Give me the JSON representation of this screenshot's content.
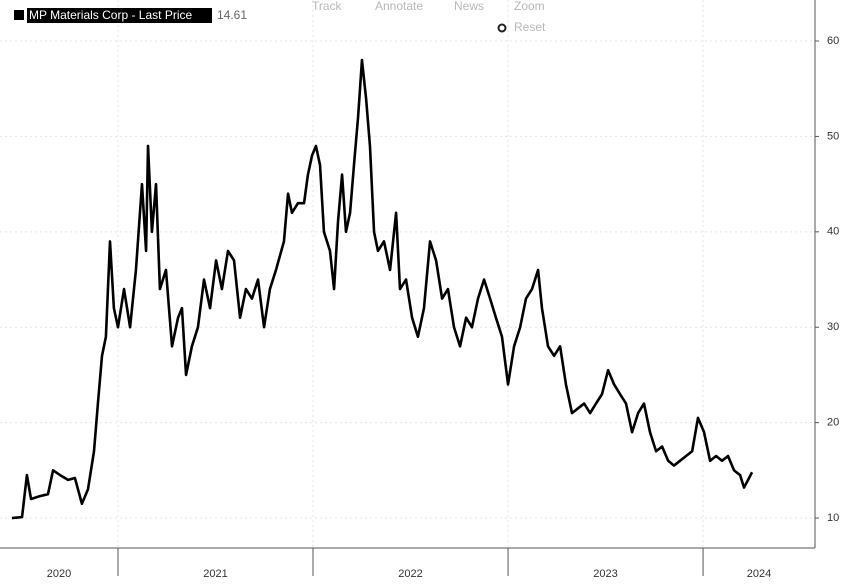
{
  "toolbar": [
    "Track",
    "Annotate",
    "News",
    "Zoom",
    "Reset"
  ],
  "chart_data": {
    "type": "line",
    "series": [
      {
        "name": "MP Materials Corp - Last Price",
        "color": "#000000",
        "last_price": 14.61,
        "x": [
          2020.456,
          2020.508,
          2020.533,
          2020.554,
          2020.6,
          2020.641,
          2020.667,
          2020.703,
          2020.744,
          2020.779,
          2020.815,
          2020.846,
          2020.877,
          2020.897,
          2020.918,
          2020.938,
          2020.959,
          2020.979,
          2021.0,
          2021.031,
          2021.062,
          2021.092,
          2021.123,
          2021.144,
          2021.154,
          2021.174,
          2021.195,
          2021.215,
          2021.246,
          2021.277,
          2021.308,
          2021.328,
          2021.349,
          2021.379,
          2021.41,
          2021.441,
          2021.472,
          2021.503,
          2021.533,
          2021.564,
          2021.595,
          2021.626,
          2021.656,
          2021.687,
          2021.718,
          2021.749,
          2021.779,
          2021.81,
          2021.851,
          2021.872,
          2021.892,
          2021.923,
          2021.954,
          2021.974,
          2021.995,
          2022.015,
          2022.036,
          2022.056,
          2022.087,
          2022.108,
          2022.128,
          2022.149,
          2022.169,
          2022.19,
          2022.21,
          2022.231,
          2022.251,
          2022.272,
          2022.292,
          2022.313,
          2022.333,
          2022.364,
          2022.395,
          2022.426,
          2022.446,
          2022.477,
          2022.508,
          2022.538,
          2022.569,
          2022.6,
          2022.631,
          2022.662,
          2022.692,
          2022.723,
          2022.754,
          2022.785,
          2022.815,
          2022.846,
          2022.877,
          2022.908,
          2022.938,
          2022.969,
          2023.0,
          2023.031,
          2023.062,
          2023.092,
          2023.123,
          2023.154,
          2023.174,
          2023.205,
          2023.236,
          2023.267,
          2023.297,
          2023.328,
          2023.359,
          2023.39,
          2023.421,
          2023.451,
          2023.482,
          2023.513,
          2023.544,
          2023.574,
          2023.605,
          2023.636,
          2023.667,
          2023.697,
          2023.728,
          2023.759,
          2023.79,
          2023.821,
          2023.851,
          2023.882,
          2023.913,
          2023.944,
          2023.974,
          2024.005,
          2024.036,
          2024.067,
          2024.097,
          2024.128,
          2024.159,
          2024.19,
          2024.21,
          2024.231,
          2024.251
        ],
        "values": [
          10.0,
          10.1,
          14.5,
          12.0,
          12.3,
          12.5,
          15,
          14.5,
          14.0,
          14.2,
          11.5,
          13,
          17,
          22,
          27,
          29,
          39,
          32,
          30,
          34,
          30,
          36,
          45,
          38,
          49,
          40,
          45,
          34,
          36,
          28,
          31,
          32,
          25,
          28,
          30,
          35,
          32,
          37,
          34,
          38,
          37,
          31,
          34,
          33,
          35,
          30,
          34,
          36,
          39,
          44,
          42,
          43,
          43,
          46,
          48,
          49,
          47,
          40,
          38,
          34,
          41,
          46,
          40,
          42,
          47,
          52,
          58,
          54,
          49,
          40,
          38,
          39,
          36,
          42,
          34,
          35,
          31,
          29,
          32,
          39,
          37,
          33,
          34,
          30,
          28,
          31,
          30,
          33,
          35,
          33,
          31,
          29,
          24,
          28,
          30,
          33,
          34,
          36,
          32,
          28,
          27,
          28,
          24,
          21,
          21.5,
          22,
          21,
          22,
          23,
          25.5,
          24,
          23,
          22,
          19,
          21,
          22,
          19,
          17,
          17.5,
          16,
          15.5,
          16,
          16.5,
          17,
          20.5,
          19,
          16,
          16.5,
          16,
          16.5,
          15,
          14.5,
          13.2,
          14,
          14.8
        ]
      }
    ],
    "xlim": [
      2020.395,
      2024.574
    ],
    "xticks": [
      {
        "value": 2020,
        "label": "2020"
      },
      {
        "value": 2021,
        "label": "2021"
      },
      {
        "value": 2022,
        "label": "2022"
      },
      {
        "value": 2023,
        "label": "2023"
      },
      {
        "value": 2024,
        "label": "2024"
      }
    ],
    "ylim": [
      6.86,
      64.3
    ],
    "yticks": [
      10,
      20,
      30,
      40,
      50,
      60
    ],
    "grid": true
  }
}
